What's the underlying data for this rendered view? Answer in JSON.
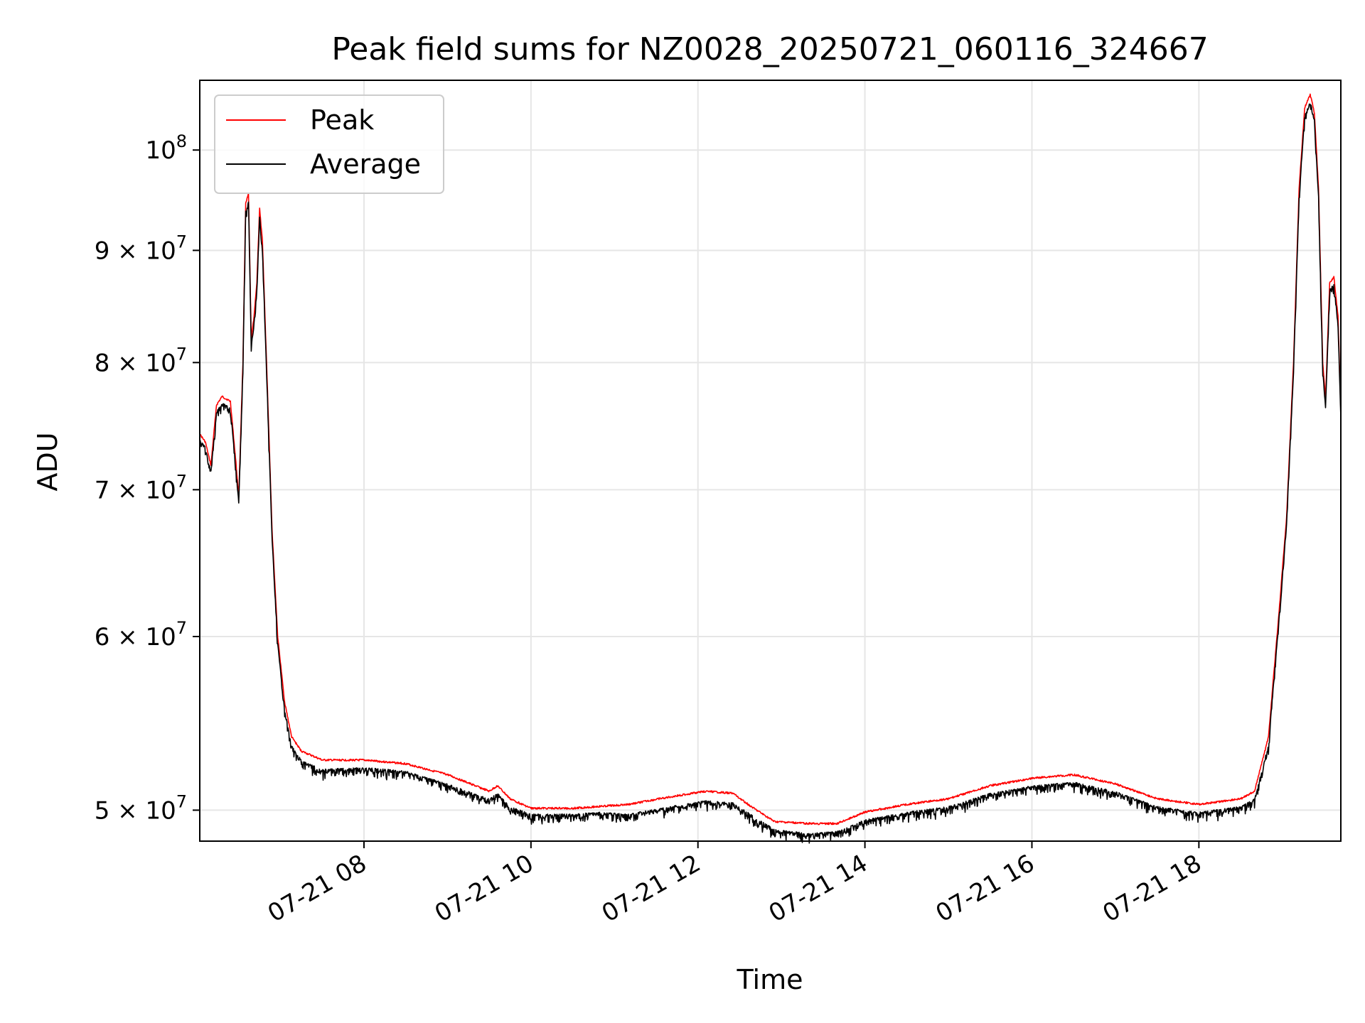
{
  "chart_data": {
    "type": "line",
    "title": "Peak field sums for NZ0028_20250721_060116_324667",
    "xlabel": "Time",
    "ylabel": "ADU",
    "yscale": "log",
    "xlim": [
      "2025-07-21 06:02",
      "2025-07-21 19:42"
    ],
    "ylim": [
      48400000,
      107600000
    ],
    "x_ticks": [
      {
        "value": "2025-07-21 08:00",
        "label": "07-21 08"
      },
      {
        "value": "2025-07-21 10:00",
        "label": "07-21 10"
      },
      {
        "value": "2025-07-21 12:00",
        "label": "07-21 12"
      },
      {
        "value": "2025-07-21 14:00",
        "label": "07-21 14"
      },
      {
        "value": "2025-07-21 16:00",
        "label": "07-21 16"
      },
      {
        "value": "2025-07-21 18:00",
        "label": "07-21 18"
      }
    ],
    "y_ticks": [
      {
        "value": 50000000,
        "mantissa": "5",
        "times": "×",
        "base": "10",
        "exp": "7"
      },
      {
        "value": 60000000,
        "mantissa": "6",
        "times": "×",
        "base": "10",
        "exp": "7"
      },
      {
        "value": 70000000,
        "mantissa": "7",
        "times": "×",
        "base": "10",
        "exp": "7"
      },
      {
        "value": 80000000,
        "mantissa": "8",
        "times": "×",
        "base": "10",
        "exp": "7"
      },
      {
        "value": 90000000,
        "mantissa": "9",
        "times": "×",
        "base": "10",
        "exp": "7"
      },
      {
        "value": 100000000,
        "mantissa": "",
        "times": "",
        "base": "10",
        "exp": "8"
      }
    ],
    "grid": true,
    "legend_position": "top-left",
    "series": [
      {
        "name": "Peak",
        "color": "#ff0000",
        "points": [
          [
            "2025-07-21 06:02",
            74200000
          ],
          [
            "2025-07-21 06:06",
            73600000
          ],
          [
            "2025-07-21 06:10",
            71800000
          ],
          [
            "2025-07-21 06:14",
            76500000
          ],
          [
            "2025-07-21 06:18",
            77200000
          ],
          [
            "2025-07-21 06:24",
            76800000
          ],
          [
            "2025-07-21 06:28",
            72000000
          ],
          [
            "2025-07-21 06:30",
            69500000
          ],
          [
            "2025-07-21 06:33",
            80000000
          ],
          [
            "2025-07-21 06:35",
            94500000
          ],
          [
            "2025-07-21 06:37",
            95500000
          ],
          [
            "2025-07-21 06:39",
            82000000
          ],
          [
            "2025-07-21 06:41",
            84000000
          ],
          [
            "2025-07-21 06:43",
            87000000
          ],
          [
            "2025-07-21 06:45",
            94000000
          ],
          [
            "2025-07-21 06:47",
            91000000
          ],
          [
            "2025-07-21 06:50",
            80000000
          ],
          [
            "2025-07-21 06:54",
            67000000
          ],
          [
            "2025-07-21 06:58",
            60000000
          ],
          [
            "2025-07-21 07:03",
            56000000
          ],
          [
            "2025-07-21 07:08",
            54000000
          ],
          [
            "2025-07-21 07:15",
            53200000
          ],
          [
            "2025-07-21 07:30",
            52700000
          ],
          [
            "2025-07-21 08:00",
            52700000
          ],
          [
            "2025-07-21 08:30",
            52500000
          ],
          [
            "2025-07-21 09:00",
            51900000
          ],
          [
            "2025-07-21 09:30",
            51000000
          ],
          [
            "2025-07-21 09:36",
            51300000
          ],
          [
            "2025-07-21 09:45",
            50600000
          ],
          [
            "2025-07-21 10:00",
            50100000
          ],
          [
            "2025-07-21 10:30",
            50100000
          ],
          [
            "2025-07-21 10:50",
            50200000
          ],
          [
            "2025-07-21 11:10",
            50300000
          ],
          [
            "2025-07-21 11:40",
            50700000
          ],
          [
            "2025-07-21 12:05",
            51000000
          ],
          [
            "2025-07-21 12:25",
            50900000
          ],
          [
            "2025-07-21 12:40",
            50100000
          ],
          [
            "2025-07-21 12:55",
            49400000
          ],
          [
            "2025-07-21 13:20",
            49300000
          ],
          [
            "2025-07-21 13:40",
            49300000
          ],
          [
            "2025-07-21 14:00",
            49900000
          ],
          [
            "2025-07-21 14:30",
            50300000
          ],
          [
            "2025-07-21 15:00",
            50600000
          ],
          [
            "2025-07-21 15:30",
            51300000
          ],
          [
            "2025-07-21 16:00",
            51700000
          ],
          [
            "2025-07-21 16:30",
            51900000
          ],
          [
            "2025-07-21 17:00",
            51400000
          ],
          [
            "2025-07-21 17:30",
            50600000
          ],
          [
            "2025-07-21 18:00",
            50300000
          ],
          [
            "2025-07-21 18:30",
            50600000
          ],
          [
            "2025-07-21 18:40",
            51000000
          ],
          [
            "2025-07-21 18:50",
            54000000
          ],
          [
            "2025-07-21 18:58",
            62000000
          ],
          [
            "2025-07-21 19:03",
            68000000
          ],
          [
            "2025-07-21 19:08",
            80000000
          ],
          [
            "2025-07-21 19:12",
            96000000
          ],
          [
            "2025-07-21 19:16",
            104500000
          ],
          [
            "2025-07-21 19:20",
            106000000
          ],
          [
            "2025-07-21 19:23",
            104000000
          ],
          [
            "2025-07-21 19:26",
            96000000
          ],
          [
            "2025-07-21 19:29",
            80000000
          ],
          [
            "2025-07-21 19:31",
            77000000
          ],
          [
            "2025-07-21 19:34",
            87000000
          ],
          [
            "2025-07-21 19:37",
            87500000
          ],
          [
            "2025-07-21 19:40",
            84000000
          ],
          [
            "2025-07-21 19:42",
            76000000
          ]
        ]
      },
      {
        "name": "Average",
        "color": "#000000",
        "points": [
          [
            "2025-07-21 06:02",
            73800000
          ],
          [
            "2025-07-21 06:06",
            73200000
          ],
          [
            "2025-07-21 06:10",
            71400000
          ],
          [
            "2025-07-21 06:14",
            76000000
          ],
          [
            "2025-07-21 06:18",
            76700000
          ],
          [
            "2025-07-21 06:24",
            76300000
          ],
          [
            "2025-07-21 06:28",
            71600000
          ],
          [
            "2025-07-21 06:30",
            69100000
          ],
          [
            "2025-07-21 06:33",
            79500000
          ],
          [
            "2025-07-21 06:35",
            93800000
          ],
          [
            "2025-07-21 06:37",
            94800000
          ],
          [
            "2025-07-21 06:39",
            81400000
          ],
          [
            "2025-07-21 06:41",
            83400000
          ],
          [
            "2025-07-21 06:43",
            86400000
          ],
          [
            "2025-07-21 06:45",
            93300000
          ],
          [
            "2025-07-21 06:47",
            90300000
          ],
          [
            "2025-07-21 06:50",
            79400000
          ],
          [
            "2025-07-21 06:54",
            66500000
          ],
          [
            "2025-07-21 06:58",
            59600000
          ],
          [
            "2025-07-21 07:03",
            55600000
          ],
          [
            "2025-07-21 07:08",
            53500000
          ],
          [
            "2025-07-21 07:15",
            52700000
          ],
          [
            "2025-07-21 07:30",
            52200000
          ],
          [
            "2025-07-21 08:00",
            52300000
          ],
          [
            "2025-07-21 08:30",
            52100000
          ],
          [
            "2025-07-21 09:00",
            51400000
          ],
          [
            "2025-07-21 09:30",
            50600000
          ],
          [
            "2025-07-21 09:36",
            50900000
          ],
          [
            "2025-07-21 09:45",
            50200000
          ],
          [
            "2025-07-21 10:00",
            49800000
          ],
          [
            "2025-07-21 10:30",
            49800000
          ],
          [
            "2025-07-21 10:50",
            49900000
          ],
          [
            "2025-07-21 11:10",
            49800000
          ],
          [
            "2025-07-21 11:40",
            50200000
          ],
          [
            "2025-07-21 12:05",
            50500000
          ],
          [
            "2025-07-21 12:25",
            50400000
          ],
          [
            "2025-07-21 12:40",
            49700000
          ],
          [
            "2025-07-21 12:55",
            49000000
          ],
          [
            "2025-07-21 13:20",
            48800000
          ],
          [
            "2025-07-21 13:40",
            48900000
          ],
          [
            "2025-07-21 14:00",
            49500000
          ],
          [
            "2025-07-21 14:30",
            49900000
          ],
          [
            "2025-07-21 15:00",
            50200000
          ],
          [
            "2025-07-21 15:30",
            50900000
          ],
          [
            "2025-07-21 16:00",
            51300000
          ],
          [
            "2025-07-21 16:30",
            51500000
          ],
          [
            "2025-07-21 17:00",
            51000000
          ],
          [
            "2025-07-21 17:30",
            50200000
          ],
          [
            "2025-07-21 18:00",
            49900000
          ],
          [
            "2025-07-21 18:30",
            50200000
          ],
          [
            "2025-07-21 18:40",
            50600000
          ],
          [
            "2025-07-21 18:50",
            53600000
          ],
          [
            "2025-07-21 18:58",
            61600000
          ],
          [
            "2025-07-21 19:03",
            67600000
          ],
          [
            "2025-07-21 19:08",
            79500000
          ],
          [
            "2025-07-21 19:12",
            95300000
          ],
          [
            "2025-07-21 19:16",
            103800000
          ],
          [
            "2025-07-21 19:20",
            105300000
          ],
          [
            "2025-07-21 19:23",
            103300000
          ],
          [
            "2025-07-21 19:26",
            95300000
          ],
          [
            "2025-07-21 19:29",
            79400000
          ],
          [
            "2025-07-21 19:31",
            76400000
          ],
          [
            "2025-07-21 19:34",
            86400000
          ],
          [
            "2025-07-21 19:37",
            86900000
          ],
          [
            "2025-07-21 19:40",
            83400000
          ],
          [
            "2025-07-21 19:42",
            75500000
          ]
        ]
      }
    ]
  }
}
